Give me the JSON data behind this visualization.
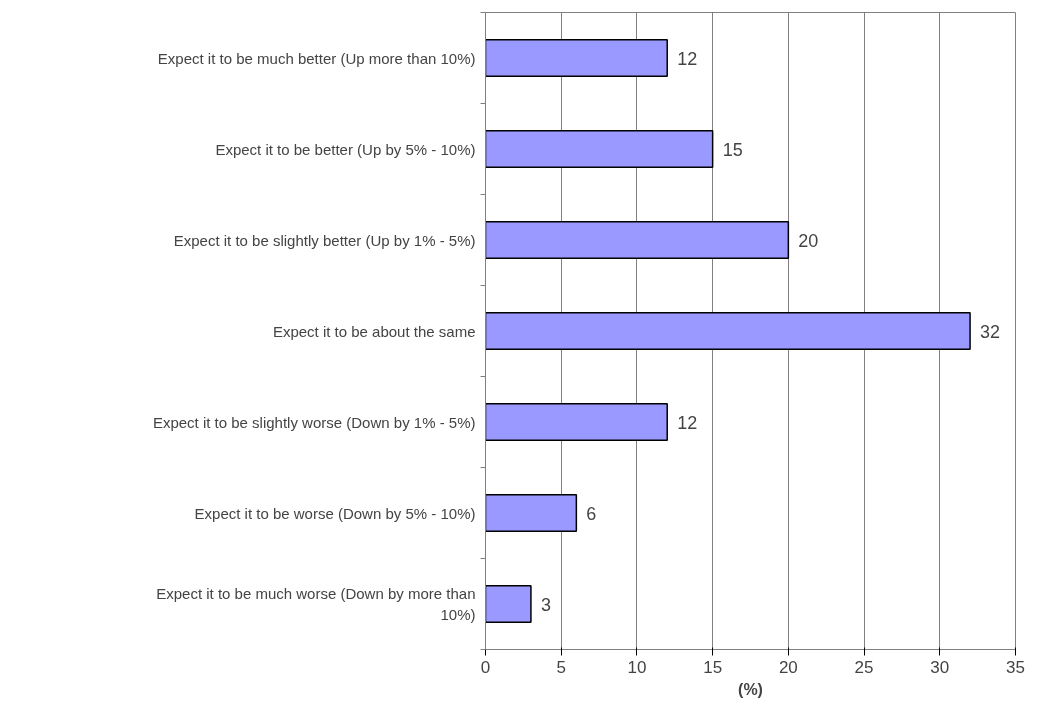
{
  "chart_data": {
    "type": "bar",
    "orientation": "horizontal",
    "xlabel": "(%)",
    "categories": [
      "Expect it to be much better (Up more than 10%)",
      "Expect it to be better (Up by 5% - 10%)",
      "Expect it to be slightly better (Up by 1% - 5%)",
      "Expect it to be about the same",
      "Expect it to be slightly worse (Down by 1% - 5%)",
      "Expect it to be worse (Down by 5% - 10%)",
      "Expect it to be much worse (Down by more than 10%)"
    ],
    "values": [
      12,
      15,
      20,
      32,
      12,
      6,
      3
    ],
    "color": "#9999ff",
    "xlim": [
      0,
      35
    ],
    "xticks": [
      0,
      5,
      10,
      15,
      20,
      25,
      30,
      35
    ],
    "grid": "x",
    "data_labels": true
  }
}
